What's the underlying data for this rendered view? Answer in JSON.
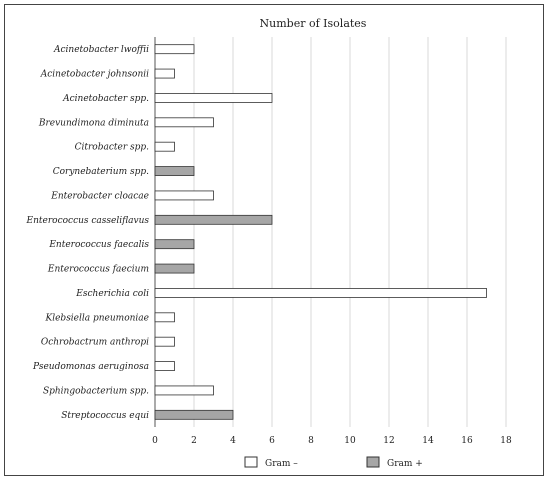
{
  "chart_data": {
    "type": "bar",
    "orientation": "horizontal",
    "title": "Number of  Isolates",
    "xlim": [
      0,
      18
    ],
    "x_ticks": [
      0,
      2,
      4,
      6,
      8,
      10,
      12,
      14,
      16,
      18
    ],
    "grid": "vertical",
    "legend_position": "bottom",
    "categories": [
      "Acinetobacter lwoffii",
      "Acinetobacter johnsonii",
      "Acinetobacter spp.",
      "Brevundimona diminuta",
      "Citrobacter spp.",
      "Corynebaterium spp.",
      "Enterobacter cloacae",
      "Enterococcus casseliflavus",
      "Enterococcus faecalis",
      "Enterococcus faecium",
      "Escherichia coli",
      "Klebsiella pneumoniae",
      "Ochrobactrum anthropi",
      "Pseudomonas aeruginosa",
      "Sphingobacterium spp.",
      "Streptococcus equi"
    ],
    "values": [
      2,
      1,
      6,
      3,
      1,
      2,
      3,
      6,
      2,
      2,
      17,
      1,
      1,
      1,
      3,
      4
    ],
    "group": [
      "neg",
      "neg",
      "neg",
      "neg",
      "neg",
      "pos",
      "neg",
      "pos",
      "pos",
      "pos",
      "neg",
      "neg",
      "neg",
      "neg",
      "neg",
      "pos"
    ],
    "series": [
      {
        "key": "neg",
        "name": "Gram –",
        "color": "#ffffff"
      },
      {
        "key": "pos",
        "name": "Gram +",
        "color": "#a6a6a6"
      }
    ]
  }
}
